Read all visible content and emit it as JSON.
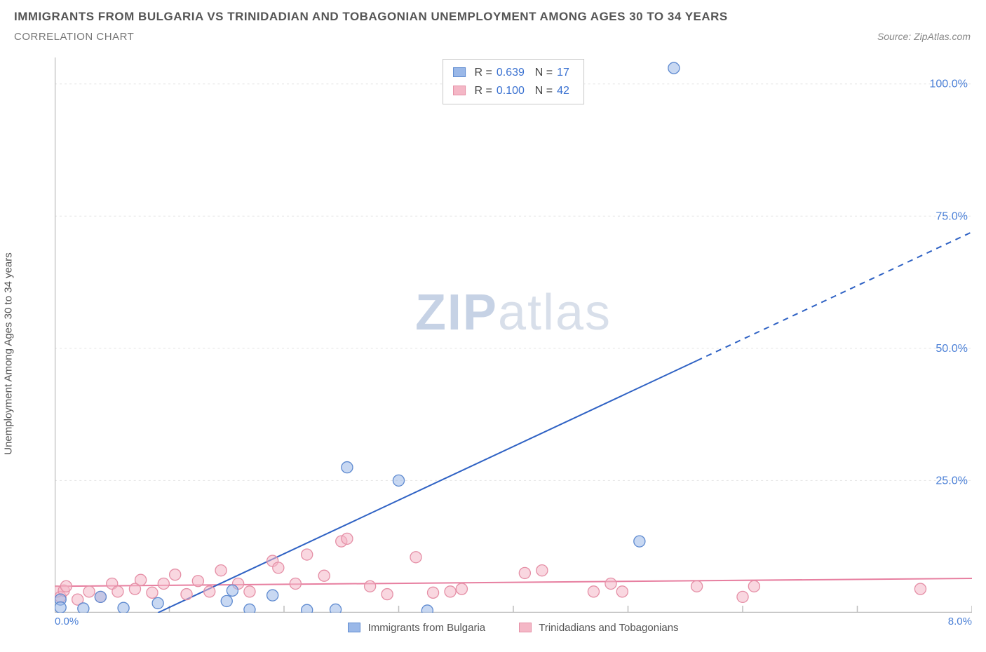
{
  "title_line1": "IMMIGRANTS FROM BULGARIA VS TRINIDADIAN AND TOBAGONIAN UNEMPLOYMENT AMONG AGES 30 TO 34 YEARS",
  "title_line2": "CORRELATION CHART",
  "source_label": "Source: ZipAtlas.com",
  "y_axis_label": "Unemployment Among Ages 30 to 34 years",
  "watermark_a": "ZIP",
  "watermark_b": "atlas",
  "chart": {
    "type": "scatter",
    "background_color": "#ffffff",
    "grid_color": "#e3e3e3",
    "axis_line_color": "#bfbfbf",
    "tick_color": "#bfbfbf",
    "xlim": [
      0,
      8
    ],
    "ylim": [
      0,
      105
    ],
    "x_ticks_major": [
      0,
      1,
      2,
      3,
      4,
      5,
      6,
      7,
      8
    ],
    "x_tick_labels_shown": {
      "0": "0.0%",
      "8": "8.0%"
    },
    "x_label_color": "#4a7fd6",
    "y_ticks_major": [
      25,
      50,
      75,
      100
    ],
    "y_tick_labels": {
      "25": "25.0%",
      "50": "50.0%",
      "75": "75.0%",
      "100": "100.0%"
    },
    "y_label_color": "#4a7fd6",
    "marker_radius": 8,
    "marker_opacity": 0.55,
    "series": [
      {
        "name": "Immigrants from Bulgaria",
        "marker_fill": "#9ab8e8",
        "marker_stroke": "#5e8ad0",
        "line_color": "#2f62c4",
        "line_width": 2,
        "R": "0.639",
        "N": "17",
        "points": [
          [
            0.05,
            2.5
          ],
          [
            0.05,
            1.0
          ],
          [
            0.25,
            0.8
          ],
          [
            0.6,
            0.9
          ],
          [
            1.5,
            2.2
          ],
          [
            1.55,
            4.2
          ],
          [
            1.7,
            0.6
          ],
          [
            1.9,
            3.3
          ],
          [
            2.2,
            0.5
          ],
          [
            2.45,
            0.6
          ],
          [
            2.55,
            27.5
          ],
          [
            3.0,
            25.0
          ],
          [
            3.25,
            0.4
          ],
          [
            5.1,
            13.5
          ],
          [
            5.4,
            103.0
          ],
          [
            0.9,
            1.8
          ],
          [
            0.4,
            3.0
          ]
        ],
        "trend": {
          "x1": 0.9,
          "y1": 0,
          "x2": 8.0,
          "y2": 72.0,
          "dash_from_x": 5.6
        }
      },
      {
        "name": "Trinidadians and Tobagonians",
        "marker_fill": "#f4b7c6",
        "marker_stroke": "#e58fa6",
        "line_color": "#e77fa0",
        "line_width": 2,
        "R": "0.100",
        "N": "42",
        "points": [
          [
            0.02,
            4.0
          ],
          [
            0.05,
            3.0
          ],
          [
            0.08,
            4.2
          ],
          [
            0.1,
            5.0
          ],
          [
            0.2,
            2.5
          ],
          [
            0.3,
            4.0
          ],
          [
            0.4,
            3.0
          ],
          [
            0.5,
            5.5
          ],
          [
            0.55,
            4.0
          ],
          [
            0.7,
            4.5
          ],
          [
            0.75,
            6.2
          ],
          [
            0.85,
            3.8
          ],
          [
            0.95,
            5.5
          ],
          [
            1.05,
            7.2
          ],
          [
            1.15,
            3.5
          ],
          [
            1.25,
            6.0
          ],
          [
            1.35,
            4.0
          ],
          [
            1.45,
            8.0
          ],
          [
            1.6,
            5.5
          ],
          [
            1.7,
            4.0
          ],
          [
            1.9,
            9.8
          ],
          [
            1.95,
            8.5
          ],
          [
            2.1,
            5.5
          ],
          [
            2.2,
            11.0
          ],
          [
            2.35,
            7.0
          ],
          [
            2.5,
            13.5
          ],
          [
            2.55,
            14.0
          ],
          [
            2.75,
            5.0
          ],
          [
            2.9,
            3.5
          ],
          [
            3.15,
            10.5
          ],
          [
            3.3,
            3.8
          ],
          [
            3.45,
            4.0
          ],
          [
            3.55,
            4.5
          ],
          [
            4.1,
            7.5
          ],
          [
            4.25,
            8.0
          ],
          [
            4.7,
            4.0
          ],
          [
            4.85,
            5.5
          ],
          [
            4.95,
            4.0
          ],
          [
            5.6,
            5.0
          ],
          [
            6.0,
            3.0
          ],
          [
            6.1,
            5.0
          ],
          [
            7.55,
            4.5
          ]
        ],
        "trend": {
          "x1": 0.0,
          "y1": 5.0,
          "x2": 8.0,
          "y2": 6.5,
          "dash_from_x": 99
        }
      }
    ]
  },
  "legend_box": {
    "rlabel": "R =",
    "nlabel": "N ="
  },
  "bottom_legend": {
    "items": [
      {
        "label": "Immigrants from Bulgaria",
        "fill": "#9ab8e8",
        "stroke": "#5e8ad0"
      },
      {
        "label": "Trinidadians and Tobagonians",
        "fill": "#f4b7c6",
        "stroke": "#e58fa6"
      }
    ]
  }
}
